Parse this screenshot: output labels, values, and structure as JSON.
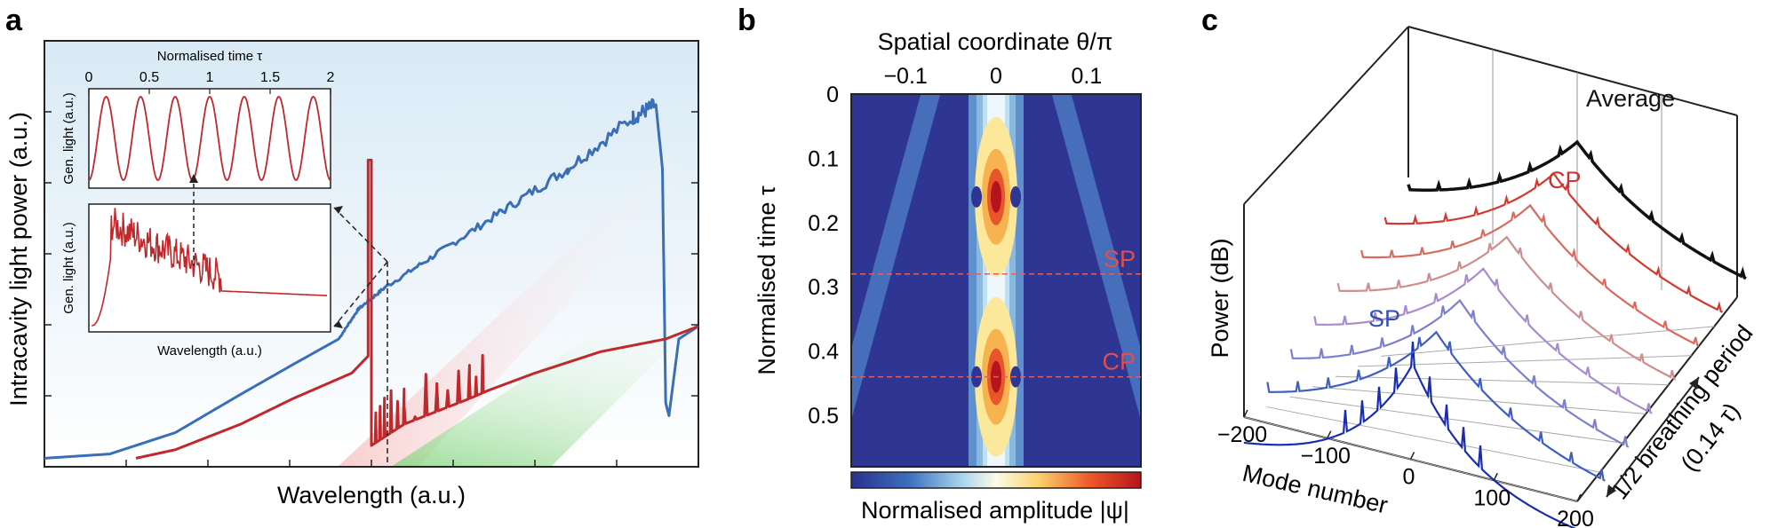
{
  "panels": {
    "a": "a",
    "b": "b",
    "c": "c"
  },
  "colors": {
    "blue": "#3a6fb7",
    "red": "#c0282c",
    "black": "#111111",
    "bg_blue": "#e3eff8",
    "green": "#8fd68a",
    "pink": "#f2a5a5"
  },
  "chart_data": [
    {
      "id": "a",
      "type": "line",
      "xlabel": "Wavelength (a.u.)",
      "ylabel": "Intracavity light power (a.u.)",
      "xlim": [
        0,
        1
      ],
      "ylim": [
        0,
        1
      ],
      "series": [
        {
          "color": "#3a6fb7",
          "x": [
            0,
            0.1,
            0.2,
            0.3,
            0.38,
            0.45,
            0.48,
            0.52,
            0.6,
            0.7,
            0.8,
            0.9,
            0.935,
            0.945,
            0.95,
            0.955,
            0.97,
            1.0
          ],
          "y": [
            0.02,
            0.03,
            0.08,
            0.17,
            0.24,
            0.3,
            0.37,
            0.42,
            0.5,
            0.6,
            0.7,
            0.82,
            0.85,
            0.7,
            0.15,
            0.12,
            0.3,
            0.33
          ]
        },
        {
          "color": "#c0282c",
          "x": [
            0.14,
            0.2,
            0.3,
            0.38,
            0.47,
            0.495,
            0.495,
            0.5,
            0.5,
            0.52,
            0.55,
            0.6,
            0.65,
            0.68,
            0.75,
            0.85,
            0.95,
            1.0
          ],
          "y": [
            0.02,
            0.04,
            0.1,
            0.16,
            0.22,
            0.26,
            0.72,
            0.72,
            0.05,
            0.07,
            0.1,
            0.13,
            0.16,
            0.18,
            0.22,
            0.27,
            0.3,
            0.33
          ]
        }
      ],
      "inset_time": {
        "xlabel": "Normalised time τ",
        "ylabel": "Gen. light (a.u.)",
        "xticks": [
          "0",
          "0.5",
          "1",
          "1.5",
          "2"
        ],
        "xlim": [
          0,
          2
        ],
        "cycles": 7
      },
      "inset_spectrum": {
        "xlabel": "Wavelength (a.u.)",
        "ylabel": "Gen. light (a.u.)"
      }
    },
    {
      "id": "b",
      "type": "heatmap",
      "xlabel": "Spatial coordinate θ/π",
      "ylabel": "Normalised time τ",
      "xticks": [
        "−0.1",
        "0",
        "0.1"
      ],
      "xtick_values": [
        -0.1,
        0,
        0.1
      ],
      "xlim": [
        -0.16,
        0.16
      ],
      "yticks": [
        "0",
        "0.1",
        "0.2",
        "0.3",
        "0.4",
        "0.5"
      ],
      "ytick_values": [
        0,
        0.1,
        0.2,
        0.3,
        0.4,
        0.5
      ],
      "ylim": [
        0,
        0.58
      ],
      "colorbar_label": "Normalised amplitude |ψ|",
      "annotations": [
        {
          "text": "SP",
          "tau": 0.28
        },
        {
          "text": "CP",
          "tau": 0.44
        }
      ]
    },
    {
      "id": "c",
      "type": "line",
      "xlabel": "Mode number",
      "ylabel": "Power (dB)",
      "zlabel": "1/2 breathing period (0.14 τ)",
      "xticks": [
        "−200",
        "−100",
        "0",
        "100",
        "200"
      ],
      "xtick_values": [
        -200,
        -100,
        0,
        100,
        200
      ],
      "xlim": [
        -200,
        200
      ],
      "series_labels": [
        {
          "text": "Average",
          "color": "#111111"
        },
        {
          "text": "CP",
          "color": "#d03030"
        },
        {
          "text": "SP",
          "color": "#3050b0"
        }
      ],
      "traces": 8
    }
  ]
}
